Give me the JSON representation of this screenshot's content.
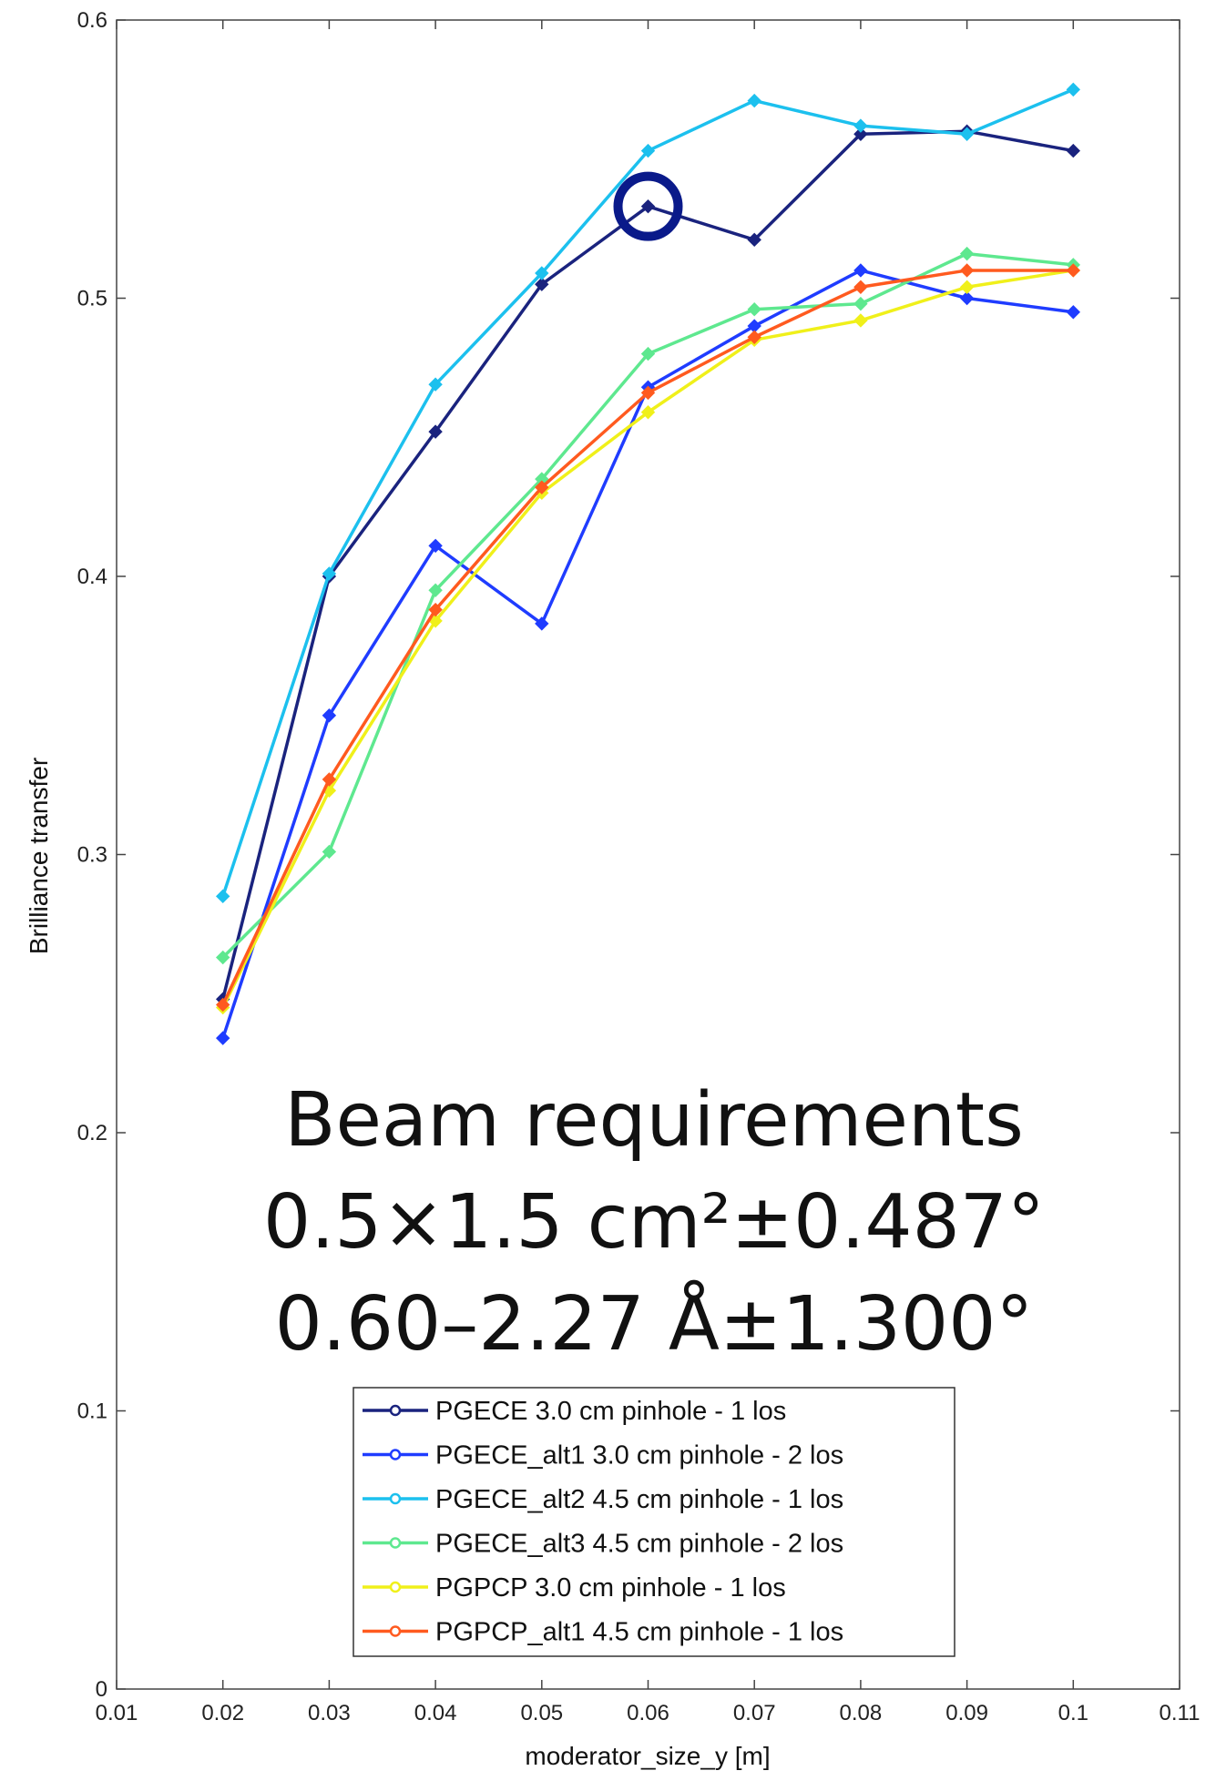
{
  "chart_data": {
    "type": "line",
    "title": "",
    "xlabel": "moderator_size_y [m]",
    "ylabel": "Brilliance transfer",
    "xlim": [
      0.01,
      0.11
    ],
    "ylim": [
      0,
      0.6
    ],
    "x_ticks": [
      "0.01",
      "0.02",
      "0.03",
      "0.04",
      "0.05",
      "0.06",
      "0.07",
      "0.08",
      "0.09",
      "0.1",
      "0.11"
    ],
    "y_ticks": [
      "0",
      "0.1",
      "0.2",
      "0.3",
      "0.4",
      "0.5",
      "0.6"
    ],
    "x": [
      0.02,
      0.03,
      0.04,
      0.05,
      0.06,
      0.07,
      0.08,
      0.09,
      0.1
    ],
    "series": [
      {
        "name": "PGECE 3.0 cm pinhole - 1 los",
        "color": "#1a237e",
        "values": [
          0.248,
          0.4,
          0.452,
          0.505,
          0.533,
          0.521,
          0.559,
          0.56,
          0.553
        ]
      },
      {
        "name": "PGECE_alt1 3.0 cm pinhole - 2 los",
        "color": "#1f3cff",
        "values": [
          0.234,
          0.35,
          0.411,
          0.383,
          0.468,
          0.49,
          0.51,
          0.5,
          0.495
        ]
      },
      {
        "name": "PGECE_alt2 4.5 cm pinhole - 1 los",
        "color": "#1cc0ee",
        "values": [
          0.285,
          0.401,
          0.469,
          0.509,
          0.553,
          0.571,
          0.562,
          0.559,
          0.575
        ]
      },
      {
        "name": "PGECE_alt3 4.5 cm pinhole - 2 los",
        "color": "#5ee88f",
        "values": [
          0.263,
          0.301,
          0.395,
          0.435,
          0.48,
          0.496,
          0.498,
          0.516,
          0.512
        ]
      },
      {
        "name": "PGPCP 3.0 cm pinhole - 1 los",
        "color": "#f0f01a",
        "values": [
          0.245,
          0.323,
          0.384,
          0.43,
          0.459,
          0.485,
          0.492,
          0.504,
          0.51
        ]
      },
      {
        "name": "PGPCP_alt1 4.5 cm pinhole - 1 los",
        "color": "#ff5a1f",
        "values": [
          0.246,
          0.327,
          0.388,
          0.432,
          0.466,
          0.486,
          0.504,
          0.51,
          0.51
        ]
      }
    ],
    "highlight": {
      "x": 0.06,
      "y": 0.533,
      "color": "#0a1a8a"
    },
    "annotation_lines": [
      "Beam requirements",
      "0.5×1.5 cm²±0.487°",
      "0.60–2.27 Å±1.300°"
    ],
    "legend_position": "bottom-center",
    "grid": false
  }
}
